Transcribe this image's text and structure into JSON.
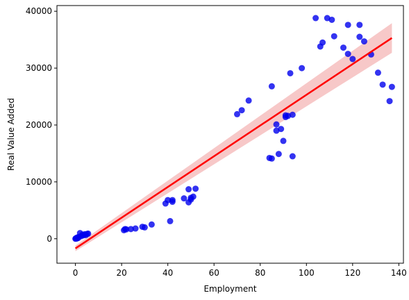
{
  "chart_data": {
    "type": "scatter",
    "title": "",
    "xlabel": "Employment",
    "ylabel": "Real Value Added",
    "xlim": [
      -8,
      142
    ],
    "ylim": [
      -4300,
      41000
    ],
    "xticks": [
      0,
      20,
      40,
      60,
      80,
      100,
      120,
      140
    ],
    "yticks": [
      0,
      10000,
      20000,
      30000,
      40000
    ],
    "grid": false,
    "colors": {
      "points": "#0000ee",
      "fit_line": "#ff0000",
      "ci_band": "#f4b6b6",
      "axis": "#000000"
    },
    "series": [
      {
        "points": [
          [
            0,
            0
          ],
          [
            0.2,
            60
          ],
          [
            0.4,
            120
          ],
          [
            0.5,
            30
          ],
          [
            0.7,
            180
          ],
          [
            0.9,
            100
          ],
          [
            1,
            250
          ],
          [
            1.2,
            150
          ],
          [
            1.5,
            300
          ],
          [
            2,
            1000
          ],
          [
            2.5,
            450
          ],
          [
            3,
            700
          ],
          [
            3.5,
            600
          ],
          [
            4,
            800
          ],
          [
            4.5,
            650
          ],
          [
            5,
            850
          ],
          [
            5.5,
            900
          ],
          [
            21,
            1500
          ],
          [
            21.5,
            1700
          ],
          [
            22,
            1650
          ],
          [
            24,
            1700
          ],
          [
            26,
            1800
          ],
          [
            29,
            2100
          ],
          [
            30,
            2000
          ],
          [
            33,
            2500
          ],
          [
            39,
            6200
          ],
          [
            40,
            6800
          ],
          [
            41,
            3100
          ],
          [
            42,
            6500
          ],
          [
            42,
            6800
          ],
          [
            47,
            7100
          ],
          [
            49,
            6400
          ],
          [
            49,
            8700
          ],
          [
            50,
            6900
          ],
          [
            50,
            7200
          ],
          [
            51,
            7400
          ],
          [
            52,
            8800
          ],
          [
            70,
            21900
          ],
          [
            72,
            22600
          ],
          [
            75,
            24300
          ],
          [
            84,
            14200
          ],
          [
            85,
            14100
          ],
          [
            85,
            26800
          ],
          [
            87,
            20100
          ],
          [
            87,
            19000
          ],
          [
            88,
            14900
          ],
          [
            89,
            19300
          ],
          [
            90,
            17200
          ],
          [
            91,
            21700
          ],
          [
            91,
            21400
          ],
          [
            92,
            21600
          ],
          [
            93,
            29100
          ],
          [
            94,
            14500
          ],
          [
            94,
            21800
          ],
          [
            98,
            30000
          ],
          [
            104,
            38800
          ],
          [
            106,
            33800
          ],
          [
            107,
            34500
          ],
          [
            109,
            38800
          ],
          [
            111,
            38500
          ],
          [
            112,
            35600
          ],
          [
            116,
            33600
          ],
          [
            118,
            37600
          ],
          [
            118,
            32500
          ],
          [
            120,
            31600
          ],
          [
            123,
            37600
          ],
          [
            123,
            35500
          ],
          [
            125,
            34700
          ],
          [
            128,
            32400
          ],
          [
            131,
            29200
          ],
          [
            133,
            27100
          ],
          [
            136,
            24200
          ],
          [
            137,
            26700
          ]
        ]
      }
    ],
    "regression": {
      "x_range": [
        0,
        137
      ],
      "y_range": [
        -1700,
        35300
      ],
      "ci_upper": [
        -1200,
        37900
      ],
      "ci_lower": [
        -2200,
        32700
      ]
    }
  }
}
